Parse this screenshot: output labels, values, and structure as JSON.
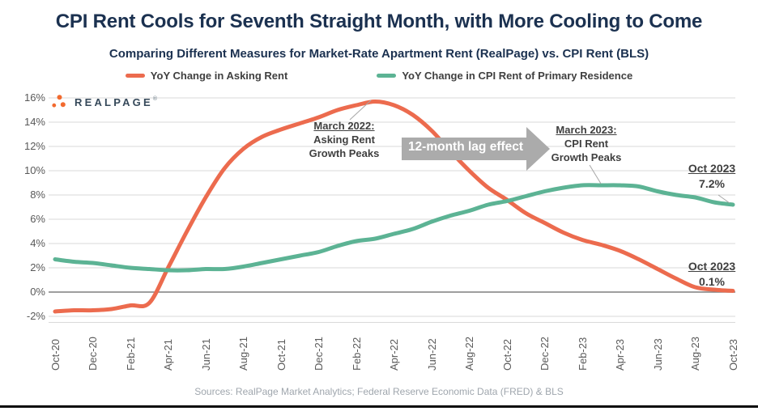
{
  "title": "CPI Rent Cools for Seventh Straight Month, with More Cooling to Come",
  "subtitle": "Comparing Different Measures for Market-Rate Apartment Rent (RealPage) vs. CPI Rent (BLS)",
  "logo": {
    "text": "REALPAGE",
    "registered": "®",
    "dot_color": "#F26A2F"
  },
  "legend": [
    {
      "label": "YoY Change in Asking Rent",
      "color": "#EC6B4E"
    },
    {
      "label": "YoY Change in CPI Rent of Primary Residence",
      "color": "#5CB394"
    }
  ],
  "annotations": {
    "asking_peak": {
      "line1": "March 2022:",
      "line2": "Asking Rent",
      "line3": "Growth Peaks"
    },
    "lag_arrow": {
      "label": "12-month lag effect",
      "color": "#ABABAB"
    },
    "cpi_peak": {
      "line1": "March 2023:",
      "line2": "CPI Rent",
      "line3": "Growth Peaks"
    },
    "green_end": {
      "line1": "Oct 2023",
      "line2": "7.2%"
    },
    "orange_end": {
      "line1": "Oct 2023",
      "line2": "0.1%"
    }
  },
  "source": "Sources: RealPage Market Analytics; Federal Reserve Economic Data (FRED) & BLS",
  "chart_data": {
    "type": "line",
    "x": [
      "Oct-20",
      "Nov-20",
      "Dec-20",
      "Jan-21",
      "Feb-21",
      "Mar-21",
      "Apr-21",
      "May-21",
      "Jun-21",
      "Jul-21",
      "Aug-21",
      "Sep-21",
      "Oct-21",
      "Nov-21",
      "Dec-21",
      "Jan-22",
      "Feb-22",
      "Mar-22",
      "Apr-22",
      "May-22",
      "Jun-22",
      "Jul-22",
      "Aug-22",
      "Sep-22",
      "Oct-22",
      "Nov-22",
      "Dec-22",
      "Jan-23",
      "Feb-23",
      "Mar-23",
      "Apr-23",
      "May-23",
      "Jun-23",
      "Jul-23",
      "Aug-23",
      "Sep-23",
      "Oct-23"
    ],
    "x_tick_labels": [
      "Oct-20",
      "Dec-20",
      "Feb-21",
      "Apr-21",
      "Jun-21",
      "Aug-21",
      "Oct-21",
      "Dec-21",
      "Feb-22",
      "Apr-22",
      "Jun-22",
      "Aug-22",
      "Oct-22",
      "Dec-22",
      "Feb-23",
      "Apr-23",
      "Jun-23",
      "Aug-23",
      "Oct-23"
    ],
    "y_ticks": [
      "16%",
      "14%",
      "12%",
      "10%",
      "8%",
      "6%",
      "4%",
      "2%",
      "0%",
      "-2%"
    ],
    "ylim": [
      -2,
      16
    ],
    "grid": true,
    "legend_position": "top",
    "series": [
      {
        "name": "YoY Change in Asking Rent",
        "color": "#EC6B4E",
        "values": [
          -1.6,
          -1.5,
          -1.5,
          -1.4,
          -1.1,
          -0.9,
          2.0,
          5.0,
          7.8,
          10.2,
          11.8,
          12.8,
          13.4,
          13.9,
          14.4,
          15.0,
          15.4,
          15.7,
          15.4,
          14.6,
          13.3,
          11.6,
          10.0,
          8.6,
          7.6,
          6.5,
          5.7,
          4.9,
          4.3,
          3.9,
          3.4,
          2.7,
          1.9,
          1.1,
          0.4,
          0.2,
          0.1
        ]
      },
      {
        "name": "YoY Change in CPI Rent of Primary Residence",
        "color": "#5CB394",
        "values": [
          2.7,
          2.5,
          2.4,
          2.2,
          2.0,
          1.9,
          1.8,
          1.8,
          1.9,
          1.9,
          2.1,
          2.4,
          2.7,
          3.0,
          3.3,
          3.8,
          4.2,
          4.4,
          4.8,
          5.2,
          5.8,
          6.3,
          6.7,
          7.2,
          7.5,
          7.9,
          8.3,
          8.6,
          8.8,
          8.8,
          8.8,
          8.7,
          8.3,
          8.0,
          7.8,
          7.4,
          7.2
        ]
      }
    ],
    "peak_asking": {
      "x": "Mar-22",
      "value": 15.7
    },
    "peak_cpi": {
      "x": "Mar-23",
      "value": 8.8
    }
  }
}
